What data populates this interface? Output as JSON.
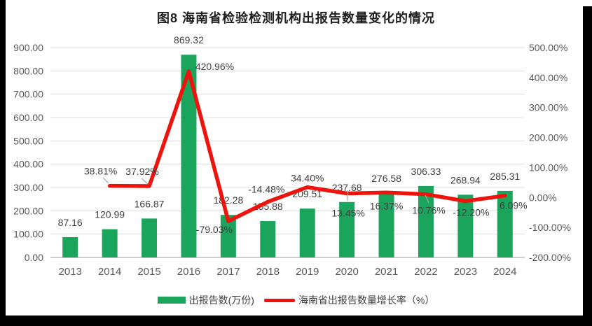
{
  "chart_data": {
    "type": "combo",
    "title": "图8 海南省检验检测机构出报告数量变化的情况",
    "categories": [
      "2013",
      "2014",
      "2015",
      "2016",
      "2017",
      "2018",
      "2019",
      "2020",
      "2021",
      "2022",
      "2023",
      "2024"
    ],
    "series": [
      {
        "name": "出报告数(万份)",
        "type": "bar",
        "color": "#1aa45c",
        "values": [
          87.16,
          120.99,
          166.87,
          869.32,
          182.28,
          155.88,
          209.51,
          237.68,
          276.58,
          306.33,
          268.94,
          285.31
        ]
      },
      {
        "name": "海南省出报告数量增长率（%）",
        "type": "line",
        "color": "#ec140d",
        "values": [
          null,
          38.81,
          37.92,
          420.96,
          -79.03,
          -14.48,
          34.4,
          13.45,
          16.37,
          10.76,
          -12.2,
          6.09
        ]
      }
    ],
    "left_axis": {
      "min": 0,
      "max": 900,
      "step": 100,
      "tick_format": "0.00"
    },
    "right_axis": {
      "min": -200,
      "max": 500,
      "step": 100,
      "tick_format": "0.00%"
    },
    "grid": true,
    "legend_position": "bottom",
    "data_labels": true
  }
}
